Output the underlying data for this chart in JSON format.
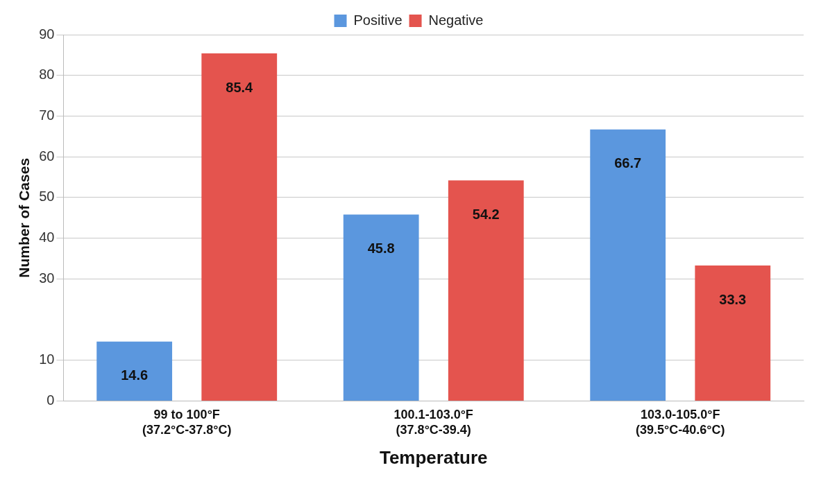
{
  "chart_data": {
    "type": "bar",
    "xlabel": "Temperature",
    "ylabel": "Number of Cases",
    "categories": [
      "99 to 100°F\n(37.2°C-37.8°C)",
      "100.1-103.0°F\n(37.8°C-39.4)",
      "103.0-105.0°F\n(39.5°C-40.6°C)"
    ],
    "series": [
      {
        "name": "Positive",
        "color": "#5b97de",
        "values": [
          14.6,
          45.8,
          66.7
        ]
      },
      {
        "name": "Negative",
        "color": "#e4544e",
        "values": [
          85.4,
          54.2,
          33.3
        ]
      }
    ],
    "ylim": [
      0,
      90
    ],
    "yticks": [
      0,
      10,
      30,
      40,
      50,
      60,
      70,
      80,
      90
    ],
    "grid": "y",
    "legend": "top",
    "data_labels": true
  }
}
